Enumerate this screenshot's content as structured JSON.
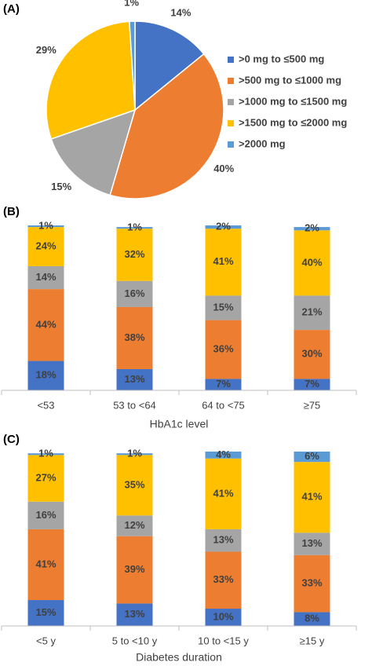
{
  "chart_data": [
    {
      "type": "pie",
      "title": "(A)",
      "categories": [
        ">0 mg to ≤500 mg",
        ">500 mg to ≤1000 mg",
        ">1000 mg to ≤1500 mg",
        ">1500 mg to ≤2000 mg",
        ">2000 mg"
      ],
      "values": [
        14,
        40,
        15,
        29,
        1
      ],
      "value_labels": [
        "14%",
        "40%",
        "15%",
        "29%",
        "1%"
      ],
      "colors": [
        "#4472c4",
        "#ed7d31",
        "#a5a5a5",
        "#ffc000",
        "#5b9bd5"
      ],
      "legend": "right"
    },
    {
      "type": "bar",
      "title": "(B)",
      "stacked": true,
      "x_label": "HbA1c level",
      "categories": [
        "<53",
        "53 to <64",
        "64 to <75",
        "≥75"
      ],
      "series": [
        {
          "color": "#4472c4",
          "values": [
            18,
            13,
            7,
            7
          ],
          "value_labels": [
            "18%",
            "13%",
            "7%",
            "7%"
          ]
        },
        {
          "color": "#ed7d31",
          "values": [
            44,
            38,
            36,
            30
          ],
          "value_labels": [
            "44%",
            "38%",
            "36%",
            "30%"
          ]
        },
        {
          "color": "#a5a5a5",
          "values": [
            14,
            16,
            15,
            21
          ],
          "value_labels": [
            "14%",
            "16%",
            "15%",
            "21%"
          ]
        },
        {
          "color": "#ffc000",
          "values": [
            24,
            32,
            41,
            40
          ],
          "value_labels": [
            "24%",
            "32%",
            "41%",
            "40%"
          ]
        },
        {
          "color": "#5b9bd5",
          "values": [
            1,
            1,
            2,
            2
          ],
          "value_labels": [
            "1%",
            "1%",
            "2%",
            "2%"
          ]
        }
      ]
    },
    {
      "type": "bar",
      "title": "(C)",
      "stacked": true,
      "x_label": "Diabetes duration",
      "categories": [
        "<5 y",
        "5 to <10 y",
        "10 to <15 y",
        "≥15 y"
      ],
      "series": [
        {
          "color": "#4472c4",
          "values": [
            15,
            13,
            10,
            8
          ],
          "value_labels": [
            "15%",
            "13%",
            "10%",
            "8%"
          ]
        },
        {
          "color": "#ed7d31",
          "values": [
            41,
            39,
            33,
            33
          ],
          "value_labels": [
            "41%",
            "39%",
            "33%",
            "33%"
          ]
        },
        {
          "color": "#a5a5a5",
          "values": [
            16,
            12,
            13,
            13
          ],
          "value_labels": [
            "16%",
            "12%",
            "13%",
            "13%"
          ]
        },
        {
          "color": "#ffc000",
          "values": [
            27,
            35,
            41,
            41
          ],
          "value_labels": [
            "27%",
            "35%",
            "41%",
            "41%"
          ]
        },
        {
          "color": "#5b9bd5",
          "values": [
            1,
            1,
            4,
            6
          ],
          "value_labels": [
            "1%",
            "1%",
            "4%",
            "6%"
          ]
        }
      ]
    }
  ]
}
